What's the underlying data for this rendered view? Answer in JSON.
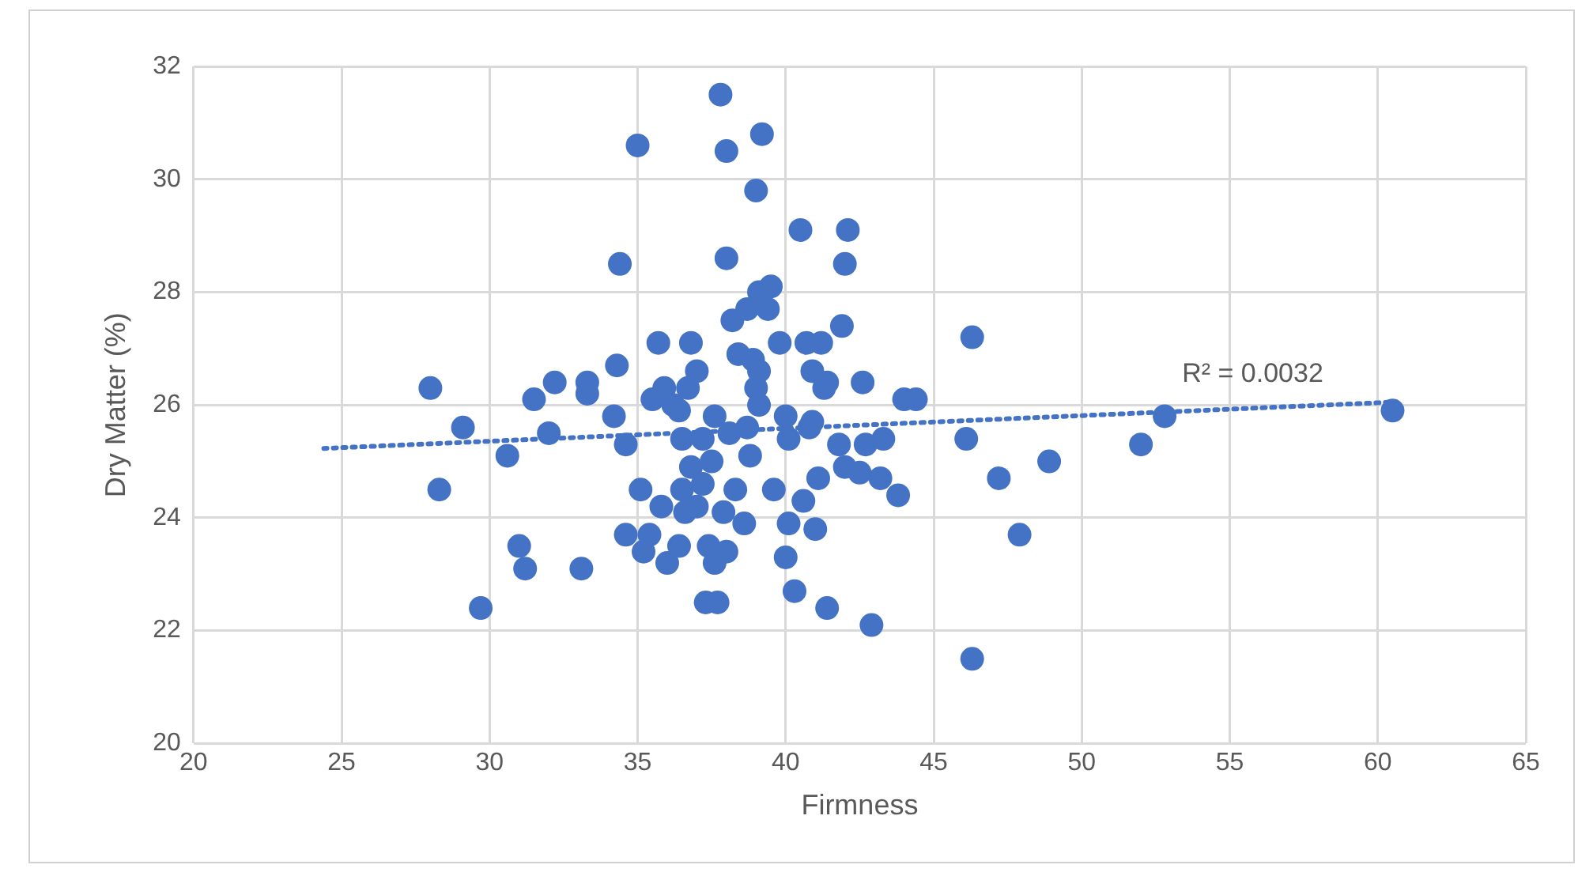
{
  "chart_data": {
    "type": "scatter",
    "xlabel": "Firmness",
    "ylabel": "Dry Matter (%)",
    "xlim": [
      20,
      65
    ],
    "xticks": [
      20,
      25,
      30,
      35,
      40,
      45,
      50,
      55,
      60,
      65
    ],
    "ylim": [
      20,
      32
    ],
    "yticks": [
      20,
      22,
      24,
      26,
      28,
      30,
      32
    ],
    "grid": true,
    "legend": false,
    "marker": "circle",
    "annotations": [
      "R² = 0.0032"
    ],
    "series": [
      {
        "color": "#4472c4",
        "x": [
          28.0,
          28.3,
          29.1,
          29.7,
          30.6,
          31.0,
          31.2,
          31.5,
          32.0,
          32.2,
          33.1,
          33.3,
          33.3,
          34.2,
          34.3,
          34.4,
          34.6,
          34.6,
          35.0,
          35.1,
          35.2,
          35.4,
          35.5,
          35.7,
          35.8,
          35.9,
          36.0,
          36.2,
          36.4,
          36.5,
          36.4,
          36.5,
          36.8,
          36.7,
          36.8,
          37.0,
          36.6,
          37.0,
          37.2,
          37.2,
          37.3,
          37.4,
          37.5,
          37.6,
          37.6,
          37.8,
          37.7,
          37.9,
          38.0,
          38.0,
          38.0,
          38.1,
          38.2,
          38.3,
          38.4,
          38.6,
          38.7,
          38.7,
          38.8,
          38.9,
          39.0,
          39.0,
          39.1,
          39.1,
          39.1,
          39.2,
          39.4,
          39.5,
          39.6,
          39.8,
          40.0,
          40.0,
          40.1,
          40.1,
          40.3,
          40.5,
          40.6,
          40.7,
          40.8,
          40.9,
          40.9,
          41.0,
          41.1,
          41.2,
          41.3,
          41.4,
          41.4,
          41.8,
          42.0,
          41.9,
          42.0,
          42.1,
          42.6,
          42.5,
          42.7,
          42.9,
          43.2,
          43.3,
          43.8,
          44.0,
          44.4,
          46.1,
          46.3,
          46.3,
          47.2,
          47.9,
          48.9,
          52.0,
          52.8,
          60.5
        ],
        "values": [
          26.3,
          24.5,
          25.6,
          22.4,
          25.1,
          23.5,
          23.1,
          26.1,
          25.5,
          26.4,
          23.1,
          26.4,
          26.2,
          25.8,
          26.7,
          28.5,
          25.3,
          23.7,
          30.6,
          24.5,
          23.4,
          23.7,
          26.1,
          27.1,
          24.2,
          26.3,
          23.2,
          26.0,
          25.9,
          25.4,
          23.5,
          24.5,
          24.9,
          26.3,
          27.1,
          26.6,
          24.1,
          24.2,
          25.4,
          24.6,
          22.5,
          23.5,
          25.0,
          25.8,
          23.2,
          31.5,
          22.5,
          24.1,
          30.5,
          28.6,
          23.4,
          25.5,
          27.5,
          24.5,
          26.9,
          23.9,
          27.7,
          25.6,
          25.1,
          26.8,
          26.3,
          29.8,
          28.0,
          26.6,
          26.0,
          30.8,
          27.7,
          28.1,
          24.5,
          27.1,
          23.3,
          25.8,
          23.9,
          25.4,
          22.7,
          29.1,
          24.3,
          27.1,
          25.6,
          26.6,
          25.7,
          23.8,
          24.7,
          27.1,
          26.3,
          26.4,
          22.4,
          25.3,
          28.5,
          27.4,
          24.9,
          29.1,
          26.4,
          24.8,
          25.3,
          22.1,
          24.7,
          25.4,
          24.4,
          26.1,
          26.1,
          25.4,
          21.5,
          27.2,
          24.7,
          23.7,
          25.0,
          25.3,
          25.8,
          25.9
        ]
      },
      {
        "type": "line",
        "color": "#4472c4",
        "line_style": "dotted",
        "marker": "none",
        "x": [
          24.4,
          60.5
        ],
        "values": [
          25.23,
          26.05
        ]
      }
    ]
  }
}
